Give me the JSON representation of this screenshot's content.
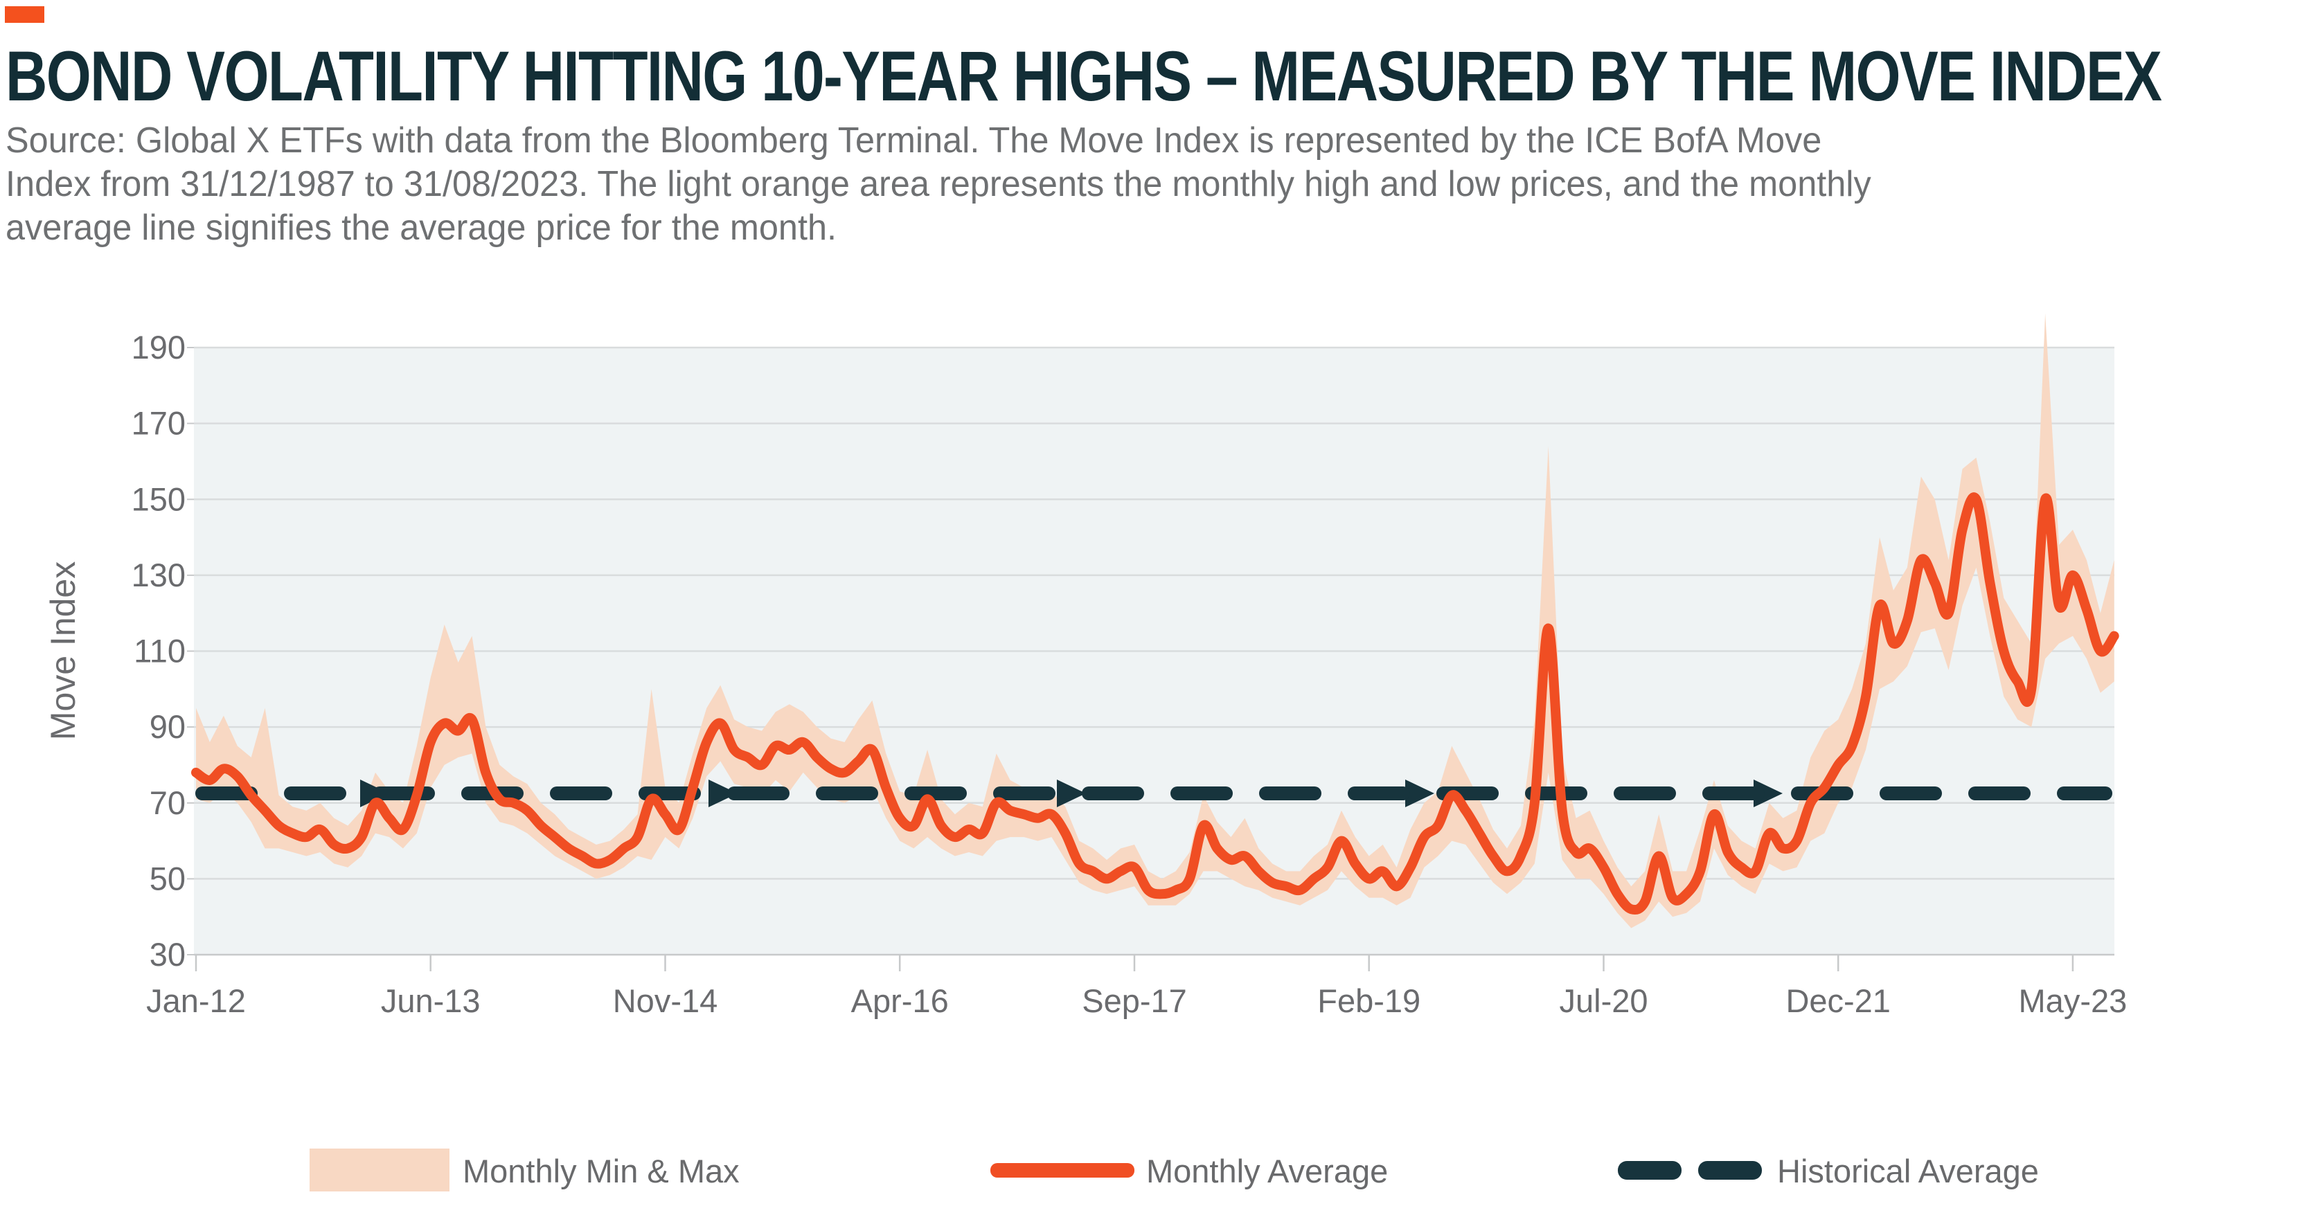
{
  "header": {
    "title": "BOND VOLATILITY HITTING 10-YEAR HIGHS – MEASURED BY THE MOVE INDEX",
    "source_lines": [
      "Source: Global X ETFs with data from the Bloomberg Terminal. The Move Index is represented by the ICE BofA Move",
      "Index from 31/12/1987 to 31/08/2023. The light orange area represents the monthly high and low prices, and the monthly",
      "average line signifies the average price for the month."
    ]
  },
  "colors": {
    "accent_orange": "#F4511E",
    "line_orange": "#F04E23",
    "band_peach": "#F8D8C3",
    "dark_teal": "#17343D",
    "plot_background": "#EFF3F4",
    "gridline": "#D9DCDD",
    "axis_line": "#C7C9CA",
    "axis_text": "#6A6B6E"
  },
  "legend": {
    "items": [
      {
        "label": "Monthly Min & Max",
        "color": "#F8D8C3",
        "swatch": "area"
      },
      {
        "label": "Monthly Average",
        "color": "#F04E23",
        "swatch": "line"
      },
      {
        "label": "Historical Average",
        "color": "#17343D",
        "swatch": "dashes"
      }
    ]
  },
  "chart_data": {
    "type": "area",
    "title": "",
    "xlabel": "",
    "ylabel": "Move Index",
    "ylim": [
      30,
      190
    ],
    "yticks": [
      190,
      170,
      150,
      130,
      110,
      90,
      70,
      50,
      30
    ],
    "grid": "horizontal",
    "legend_position": "bottom",
    "x_unit": "month",
    "x_start": "Jan-2012",
    "x_end": "Aug-2023",
    "x_tick_labels": [
      "Jan-12",
      "Jun-13",
      "Nov-14",
      "Apr-16",
      "Sep-17",
      "Feb-19",
      "Jul-20",
      "Dec-21",
      "May-23"
    ],
    "x_tick_month_indices": [
      0,
      17,
      34,
      51,
      68,
      85,
      102,
      119,
      136
    ],
    "historical_average": 72.5,
    "series": [
      {
        "name": "Monthly Average",
        "values": [
          78,
          76,
          79,
          77,
          72,
          68,
          64,
          62,
          61,
          63,
          59,
          58,
          61,
          70,
          66,
          63,
          72,
          86,
          91,
          89,
          92,
          78,
          71,
          70,
          68,
          64,
          61,
          58,
          56,
          54,
          55,
          58,
          61,
          71,
          67,
          63,
          74,
          86,
          91,
          84,
          82,
          80,
          85,
          84,
          86,
          82,
          79,
          78,
          81,
          84,
          74,
          66,
          64,
          71,
          64,
          61,
          63,
          62,
          70,
          68,
          67,
          66,
          67,
          62,
          54,
          52,
          50,
          52,
          53,
          47,
          46,
          47,
          50,
          64,
          58,
          55,
          56,
          52,
          49,
          48,
          47,
          50,
          53,
          60,
          54,
          50,
          52,
          48,
          53,
          61,
          64,
          72,
          68,
          62,
          56,
          52,
          56,
          70,
          116,
          68,
          57,
          58,
          53,
          46,
          42,
          44,
          56,
          45,
          46,
          52,
          67,
          57,
          53,
          52,
          62,
          58,
          60,
          70,
          74,
          80,
          85,
          98,
          122,
          112,
          118,
          134,
          128,
          120,
          142,
          150,
          128,
          110,
          102,
          100,
          150,
          122,
          130,
          121,
          110,
          114
        ]
      },
      {
        "name": "Monthly Min",
        "values": [
          71,
          70,
          73,
          70,
          65,
          58,
          58,
          57,
          56,
          57,
          54,
          53,
          56,
          62,
          61,
          58,
          62,
          74,
          80,
          82,
          83,
          70,
          65,
          64,
          62,
          59,
          56,
          54,
          52,
          50,
          51,
          53,
          56,
          55,
          61,
          58,
          66,
          77,
          81,
          75,
          74,
          72,
          76,
          73,
          78,
          74,
          71,
          70,
          72,
          74,
          66,
          60,
          58,
          61,
          58,
          56,
          57,
          56,
          60,
          61,
          61,
          60,
          61,
          55,
          49,
          47,
          46,
          47,
          48,
          43,
          43,
          43,
          46,
          52,
          52,
          50,
          48,
          47,
          45,
          44,
          43,
          45,
          47,
          52,
          48,
          45,
          45,
          43,
          45,
          53,
          56,
          60,
          59,
          54,
          49,
          46,
          49,
          54,
          78,
          55,
          50,
          50,
          46,
          41,
          37,
          39,
          44,
          40,
          41,
          44,
          58,
          51,
          48,
          46,
          54,
          52,
          53,
          60,
          62,
          70,
          74,
          84,
          100,
          102,
          106,
          115,
          116,
          105,
          122,
          132,
          114,
          98,
          92,
          90,
          108,
          112,
          114,
          108,
          99,
          102
        ]
      },
      {
        "name": "Monthly Max",
        "values": [
          95,
          86,
          93,
          85,
          82,
          95,
          72,
          69,
          68,
          70,
          66,
          64,
          68,
          78,
          73,
          70,
          85,
          103,
          117,
          107,
          114,
          90,
          80,
          77,
          75,
          70,
          67,
          63,
          61,
          59,
          60,
          63,
          67,
          100,
          74,
          70,
          83,
          95,
          101,
          92,
          90,
          89,
          94,
          96,
          94,
          90,
          87,
          86,
          92,
          97,
          83,
          73,
          72,
          84,
          71,
          67,
          70,
          69,
          83,
          76,
          74,
          72,
          73,
          69,
          60,
          58,
          55,
          58,
          59,
          52,
          50,
          52,
          57,
          72,
          65,
          61,
          66,
          58,
          54,
          52,
          52,
          56,
          59,
          68,
          61,
          56,
          59,
          53,
          63,
          70,
          73,
          85,
          78,
          71,
          63,
          58,
          64,
          92,
          164,
          82,
          66,
          68,
          60,
          53,
          48,
          52,
          67,
          52,
          52,
          63,
          76,
          64,
          60,
          58,
          70,
          66,
          68,
          82,
          89,
          92,
          100,
          112,
          140,
          126,
          132,
          156,
          150,
          134,
          158,
          161,
          144,
          124,
          118,
          112,
          199,
          138,
          142,
          134,
          120,
          134
        ]
      }
    ]
  }
}
